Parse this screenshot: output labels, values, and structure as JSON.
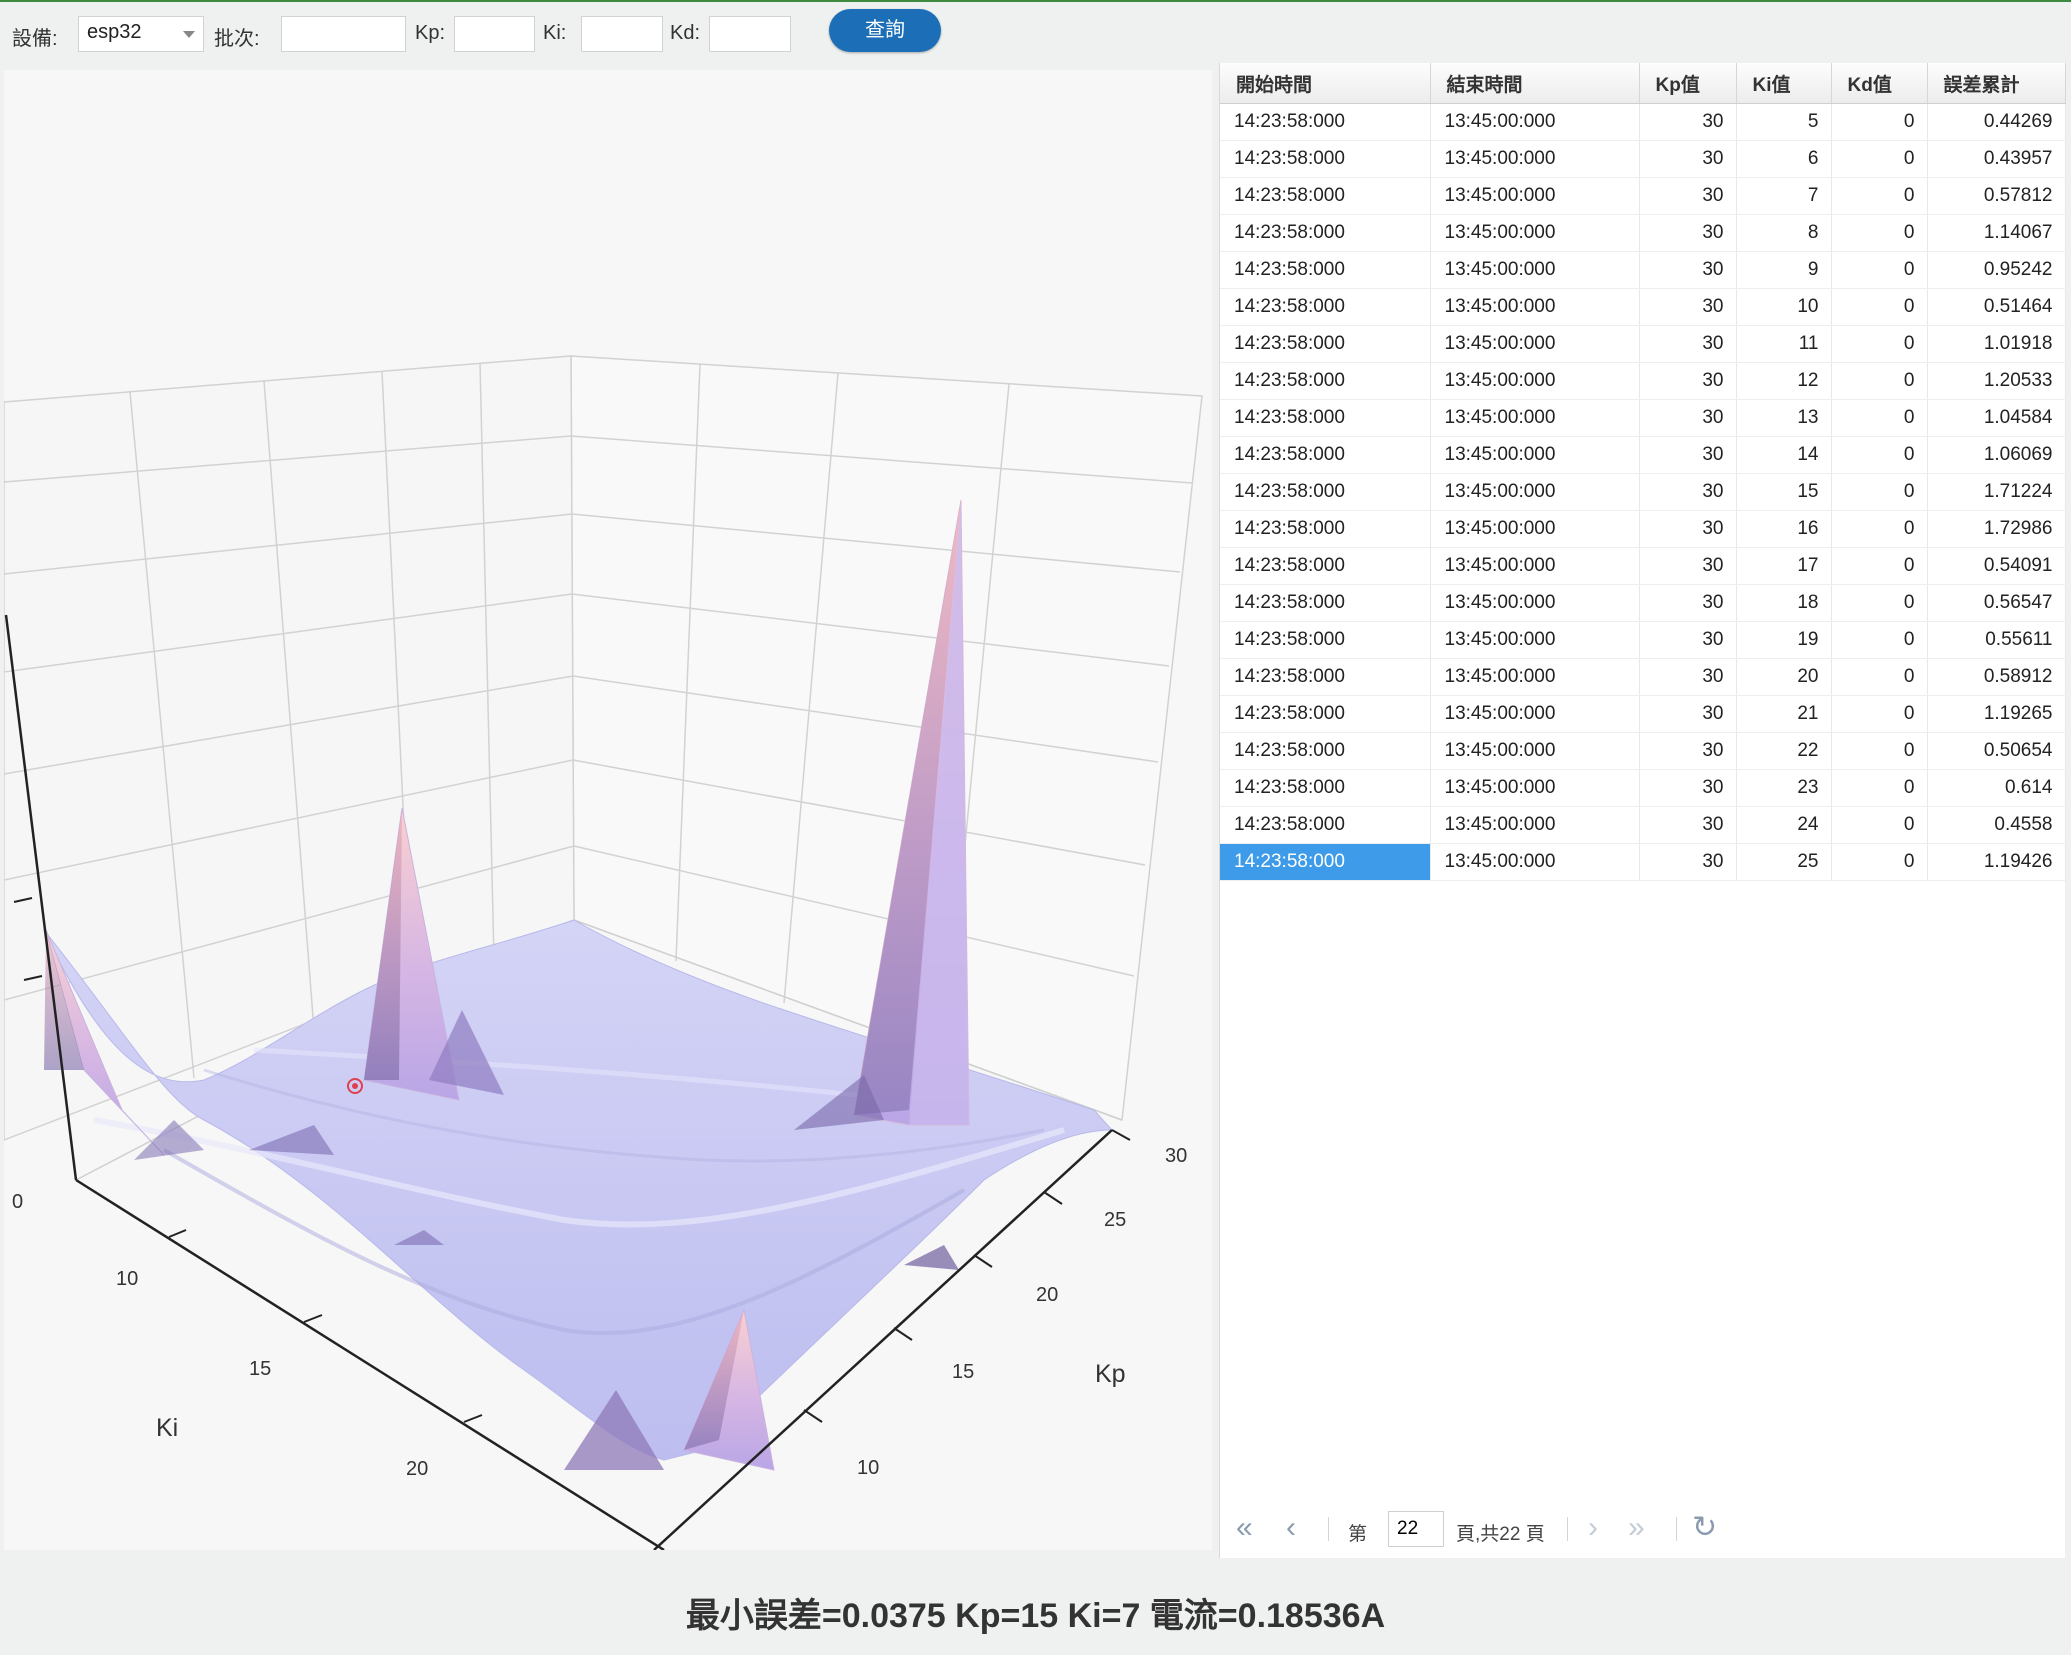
{
  "toolbar": {
    "device_label": "設備:",
    "device_value": "esp32",
    "batch_label": "批次:",
    "batch_value": "",
    "kp_label": "Kp:",
    "kp_value": "",
    "ki_label": "Ki:",
    "ki_value": "",
    "kd_label": "Kd:",
    "kd_value": "",
    "query_label": "查詢"
  },
  "chart_data": {
    "type": "surface3d",
    "xlabel": "Ki",
    "ylabel": "Kp",
    "zlabel": "",
    "ki_ticks": [
      "10",
      "15",
      "20"
    ],
    "kp_ticks": [
      "10",
      "15",
      "20",
      "25",
      "30"
    ],
    "z_ticks_visible": [
      "0"
    ],
    "surface_color": "#c8c8f4",
    "peak_color": "#f6b2b8",
    "peaks": [
      {
        "ki": 5,
        "kp": 30,
        "error": 1.9
      },
      {
        "ki": 10,
        "kp": 28,
        "error": 1.8
      },
      {
        "ki": 28,
        "kp": 22,
        "error": 2.9
      },
      {
        "ki": 24,
        "kp": 12,
        "error": 0.7
      },
      {
        "ki": 22,
        "kp": 10,
        "error": 0.5
      }
    ],
    "minimum_marker": {
      "ki": 7,
      "kp": 15,
      "error": 0.0375
    }
  },
  "grid": {
    "columns": [
      "開始時間",
      "結束時間",
      "Kp值",
      "Ki值",
      "Kd值",
      "誤差累計"
    ],
    "selected_row": 20,
    "rows": [
      [
        "14:23:58:000",
        "13:45:00:000",
        "30",
        "5",
        "0",
        "0.44269"
      ],
      [
        "14:23:58:000",
        "13:45:00:000",
        "30",
        "6",
        "0",
        "0.43957"
      ],
      [
        "14:23:58:000",
        "13:45:00:000",
        "30",
        "7",
        "0",
        "0.57812"
      ],
      [
        "14:23:58:000",
        "13:45:00:000",
        "30",
        "8",
        "0",
        "1.14067"
      ],
      [
        "14:23:58:000",
        "13:45:00:000",
        "30",
        "9",
        "0",
        "0.95242"
      ],
      [
        "14:23:58:000",
        "13:45:00:000",
        "30",
        "10",
        "0",
        "0.51464"
      ],
      [
        "14:23:58:000",
        "13:45:00:000",
        "30",
        "11",
        "0",
        "1.01918"
      ],
      [
        "14:23:58:000",
        "13:45:00:000",
        "30",
        "12",
        "0",
        "1.20533"
      ],
      [
        "14:23:58:000",
        "13:45:00:000",
        "30",
        "13",
        "0",
        "1.04584"
      ],
      [
        "14:23:58:000",
        "13:45:00:000",
        "30",
        "14",
        "0",
        "1.06069"
      ],
      [
        "14:23:58:000",
        "13:45:00:000",
        "30",
        "15",
        "0",
        "1.71224"
      ],
      [
        "14:23:58:000",
        "13:45:00:000",
        "30",
        "16",
        "0",
        "1.72986"
      ],
      [
        "14:23:58:000",
        "13:45:00:000",
        "30",
        "17",
        "0",
        "0.54091"
      ],
      [
        "14:23:58:000",
        "13:45:00:000",
        "30",
        "18",
        "0",
        "0.56547"
      ],
      [
        "14:23:58:000",
        "13:45:00:000",
        "30",
        "19",
        "0",
        "0.55611"
      ],
      [
        "14:23:58:000",
        "13:45:00:000",
        "30",
        "20",
        "0",
        "0.58912"
      ],
      [
        "14:23:58:000",
        "13:45:00:000",
        "30",
        "21",
        "0",
        "1.19265"
      ],
      [
        "14:23:58:000",
        "13:45:00:000",
        "30",
        "22",
        "0",
        "0.50654"
      ],
      [
        "14:23:58:000",
        "13:45:00:000",
        "30",
        "23",
        "0",
        "0.614"
      ],
      [
        "14:23:58:000",
        "13:45:00:000",
        "30",
        "24",
        "0",
        "0.4558"
      ],
      [
        "14:23:58:000",
        "13:45:00:000",
        "30",
        "25",
        "0",
        "1.19426"
      ]
    ]
  },
  "pager": {
    "first_icon": "double-chevron-left-icon",
    "prev_icon": "chevron-left-icon",
    "next_icon": "chevron-right-icon",
    "last_icon": "double-chevron-right-icon",
    "refresh_icon": "refresh-icon",
    "page_prefix": "第",
    "page_value": "22",
    "page_suffix": "頁,共22 頁"
  },
  "result_text": "最小誤差=0.0375 Kp=15 Ki=7 電流=0.18536A"
}
